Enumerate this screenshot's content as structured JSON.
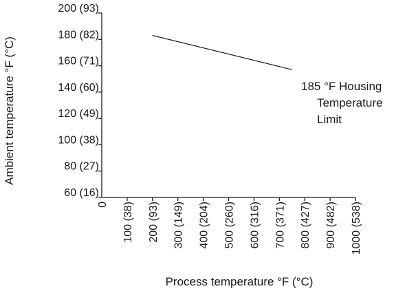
{
  "chart_data": {
    "type": "line",
    "xlabel": "Process temperature °F (°C)",
    "ylabel": "Ambient temperature °F (°C)",
    "x_ticks": [
      {
        "value": 0,
        "label": "0"
      },
      {
        "value": 100,
        "label": "100 (38)"
      },
      {
        "value": 200,
        "label": "200 (93)"
      },
      {
        "value": 300,
        "label": "300 (149)"
      },
      {
        "value": 400,
        "label": "400 (204)"
      },
      {
        "value": 500,
        "label": "500 (260)"
      },
      {
        "value": 600,
        "label": "600 (316)"
      },
      {
        "value": 700,
        "label": "700 (371)"
      },
      {
        "value": 800,
        "label": "800 (427)"
      },
      {
        "value": 900,
        "label": "900 (482)"
      },
      {
        "value": 1000,
        "label": "1000 (538)"
      }
    ],
    "y_ticks": [
      {
        "value": 60,
        "label": "60 (16)"
      },
      {
        "value": 80,
        "label": "80 (27)"
      },
      {
        "value": 100,
        "label": "100 (38)"
      },
      {
        "value": 120,
        "label": "120 (49)"
      },
      {
        "value": 140,
        "label": "140 (60)"
      },
      {
        "value": 160,
        "label": "160 (71)"
      },
      {
        "value": 180,
        "label": "180 (82)"
      },
      {
        "value": 200,
        "label": "200 (93)"
      }
    ],
    "xlim": [
      0,
      1000
    ],
    "ylim": [
      60,
      200
    ],
    "grid": false,
    "series": [
      {
        "x": [
          200,
          750
        ],
        "y": [
          183,
          157
        ]
      }
    ],
    "annotation": {
      "lines": [
        "185 °F Housing",
        "Temperature",
        "Limit"
      ],
      "anchor": {
        "x": 760,
        "y": 157
      }
    }
  }
}
